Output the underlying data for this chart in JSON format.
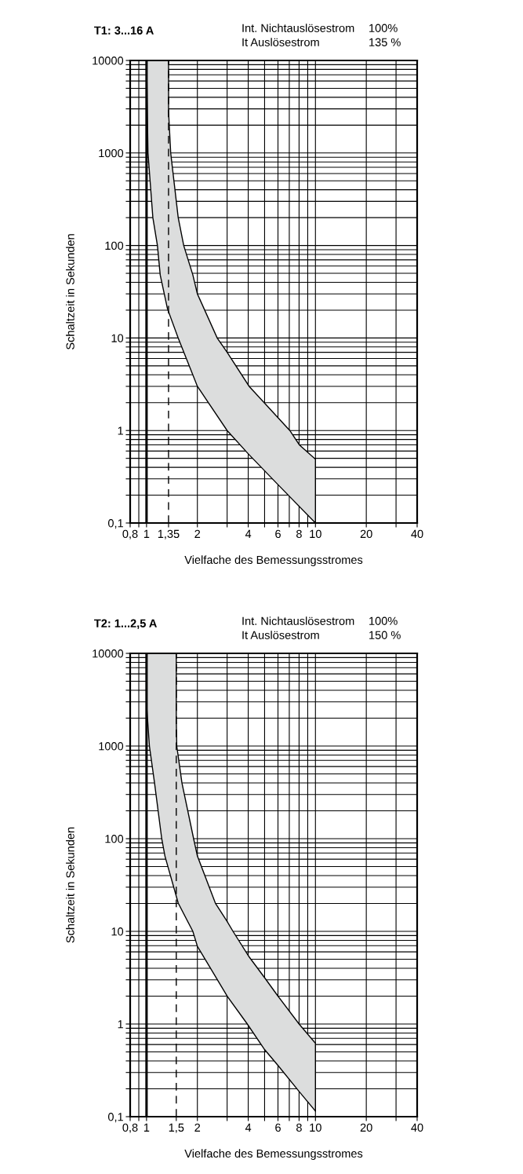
{
  "chart_data": [
    {
      "type": "area",
      "title": "T1: 3...16 A",
      "xlabel": "Vielfache des Bemessungsstromes",
      "ylabel": "Schaltzeit in Sekunden",
      "log": "xy",
      "grid": true,
      "legend": false,
      "annotations": [
        "Int. Nichtauslösestrom",
        "100%",
        "It Auslösestrom",
        "135 %"
      ],
      "xlim": [
        0.8,
        40
      ],
      "ylim": [
        0.1,
        10000
      ],
      "xticks": [
        {
          "value": 0.8,
          "label": "0,8"
        },
        {
          "value": 0.9,
          "label": null
        },
        1,
        {
          "value": 1.35,
          "label": "1,35"
        },
        2,
        {
          "value": 3,
          "label": null
        },
        4,
        {
          "value": 5,
          "label": null
        },
        6,
        {
          "value": 7,
          "label": null
        },
        8,
        {
          "value": 9,
          "label": null
        },
        10,
        20,
        {
          "value": 30,
          "label": null
        },
        40
      ],
      "yticks": [
        {
          "value": 0.1,
          "label": "0,1"
        },
        {
          "value": 0.2,
          "label": null
        },
        {
          "value": 0.3,
          "label": null
        },
        {
          "value": 0.4,
          "label": null
        },
        {
          "value": 0.5,
          "label": null
        },
        {
          "value": 0.6,
          "label": null
        },
        {
          "value": 0.7,
          "label": null
        },
        {
          "value": 0.8,
          "label": null
        },
        {
          "value": 0.9,
          "label": null
        },
        1,
        {
          "value": 2,
          "label": null
        },
        {
          "value": 3,
          "label": null
        },
        {
          "value": 4,
          "label": null
        },
        {
          "value": 5,
          "label": null
        },
        {
          "value": 6,
          "label": null
        },
        {
          "value": 7,
          "label": null
        },
        {
          "value": 8,
          "label": null
        },
        {
          "value": 9,
          "label": null
        },
        10,
        {
          "value": 20,
          "label": null
        },
        {
          "value": 30,
          "label": null
        },
        {
          "value": 40,
          "label": null
        },
        {
          "value": 50,
          "label": null
        },
        {
          "value": 60,
          "label": null
        },
        {
          "value": 70,
          "label": null
        },
        {
          "value": 80,
          "label": null
        },
        {
          "value": 90,
          "label": null
        },
        100,
        {
          "value": 200,
          "label": null
        },
        {
          "value": 300,
          "label": null
        },
        {
          "value": 400,
          "label": null
        },
        {
          "value": 500,
          "label": null
        },
        {
          "value": 600,
          "label": null
        },
        {
          "value": 700,
          "label": null
        },
        {
          "value": 800,
          "label": null
        },
        {
          "value": 900,
          "label": null
        },
        1000,
        {
          "value": 2000,
          "label": null
        },
        {
          "value": 3000,
          "label": null
        },
        {
          "value": 4000,
          "label": null
        },
        {
          "value": 5000,
          "label": null
        },
        {
          "value": 6000,
          "label": null
        },
        {
          "value": 7000,
          "label": null
        },
        {
          "value": 8000,
          "label": null
        },
        {
          "value": 9000,
          "label": null
        },
        10000
      ],
      "ref_lines": [
        {
          "axis": "x",
          "value": 1,
          "line_style": "solid",
          "color": "#000000"
        },
        {
          "axis": "x",
          "value": 1.35,
          "line_style": "dashed",
          "color": "#000000"
        }
      ],
      "series": [
        {
          "color": "#dcdddd",
          "x": [
            1.35,
            1.35,
            1.39,
            1.54,
            1.66,
            1.88,
            2.0,
            2.62,
            3.0,
            4.05,
            4.97,
            7.05,
            8.03,
            10,
            10,
            6,
            4,
            3,
            2,
            1.54,
            1.33,
            1.205,
            1.16,
            1.09,
            1.02,
            1.0
          ],
          "values": [
            10000,
            2800,
            1000,
            200,
            100,
            48,
            30,
            10,
            7,
            3,
            2,
            1,
            0.7,
            0.49,
            0.1,
            0.26,
            0.56,
            1,
            3,
            10,
            20.7,
            48,
            100,
            200,
            1000,
            10000
          ]
        }
      ]
    },
    {
      "type": "area",
      "title": "T2: 1...2,5 A",
      "xlabel": "Vielfache des Bemessungsstromes",
      "ylabel": "Schaltzeit in Sekunden",
      "log": "xy",
      "grid": true,
      "legend": false,
      "annotations": [
        "Int. Nichtauslösestrom",
        "100%",
        "It Auslösestrom",
        "150 %"
      ],
      "xlim": [
        0.8,
        40
      ],
      "ylim": [
        0.1,
        10000
      ],
      "xticks": [
        {
          "value": 0.8,
          "label": "0,8"
        },
        {
          "value": 0.9,
          "label": null
        },
        1,
        {
          "value": 1.5,
          "label": "1,5"
        },
        2,
        {
          "value": 3,
          "label": null
        },
        4,
        {
          "value": 5,
          "label": null
        },
        6,
        {
          "value": 7,
          "label": null
        },
        8,
        {
          "value": 9,
          "label": null
        },
        10,
        20,
        {
          "value": 30,
          "label": null
        },
        40
      ],
      "yticks": [
        {
          "value": 0.1,
          "label": "0,1"
        },
        {
          "value": 0.2,
          "label": null
        },
        {
          "value": 0.3,
          "label": null
        },
        {
          "value": 0.4,
          "label": null
        },
        {
          "value": 0.5,
          "label": null
        },
        {
          "value": 0.6,
          "label": null
        },
        {
          "value": 0.7,
          "label": null
        },
        {
          "value": 0.8,
          "label": null
        },
        {
          "value": 0.9,
          "label": null
        },
        1,
        {
          "value": 2,
          "label": null
        },
        {
          "value": 3,
          "label": null
        },
        {
          "value": 4,
          "label": null
        },
        {
          "value": 5,
          "label": null
        },
        {
          "value": 6,
          "label": null
        },
        {
          "value": 7,
          "label": null
        },
        {
          "value": 8,
          "label": null
        },
        {
          "value": 9,
          "label": null
        },
        10,
        {
          "value": 20,
          "label": null
        },
        {
          "value": 30,
          "label": null
        },
        {
          "value": 40,
          "label": null
        },
        {
          "value": 50,
          "label": null
        },
        {
          "value": 60,
          "label": null
        },
        {
          "value": 70,
          "label": null
        },
        {
          "value": 80,
          "label": null
        },
        {
          "value": 90,
          "label": null
        },
        100,
        {
          "value": 200,
          "label": null
        },
        {
          "value": 300,
          "label": null
        },
        {
          "value": 400,
          "label": null
        },
        {
          "value": 500,
          "label": null
        },
        {
          "value": 600,
          "label": null
        },
        {
          "value": 700,
          "label": null
        },
        {
          "value": 800,
          "label": null
        },
        {
          "value": 900,
          "label": null
        },
        1000,
        {
          "value": 2000,
          "label": null
        },
        {
          "value": 3000,
          "label": null
        },
        {
          "value": 4000,
          "label": null
        },
        {
          "value": 5000,
          "label": null
        },
        {
          "value": 6000,
          "label": null
        },
        {
          "value": 7000,
          "label": null
        },
        {
          "value": 8000,
          "label": null
        },
        {
          "value": 9000,
          "label": null
        },
        10000
      ],
      "ref_lines": [
        {
          "axis": "x",
          "value": 1,
          "line_style": "solid",
          "color": "#000000"
        },
        {
          "axis": "x",
          "value": 1.5,
          "line_style": "dashed",
          "color": "#000000"
        }
      ],
      "series": [
        {
          "color": "#dcdddd",
          "x": [
            1.5,
            1.5,
            1.51,
            1.62,
            1.9,
            2.0,
            2.56,
            3.0,
            3.25,
            4.05,
            5.0,
            6.0,
            8.0,
            10,
            10,
            8,
            6,
            5,
            3.95,
            3,
            2,
            1.88,
            1.54,
            1.285,
            1.23,
            1.115,
            1.04,
            1.0,
            1.0
          ],
          "values": [
            10000,
            1900,
            1000,
            400,
            100,
            65,
            20,
            12.8,
            10,
            5.3,
            3.16,
            2.0,
            1.0,
            0.62,
            0.115,
            0.187,
            0.357,
            0.53,
            1,
            2,
            6.9,
            10,
            20.2,
            65,
            100,
            400,
            1000,
            2800,
            10000
          ]
        }
      ]
    }
  ]
}
